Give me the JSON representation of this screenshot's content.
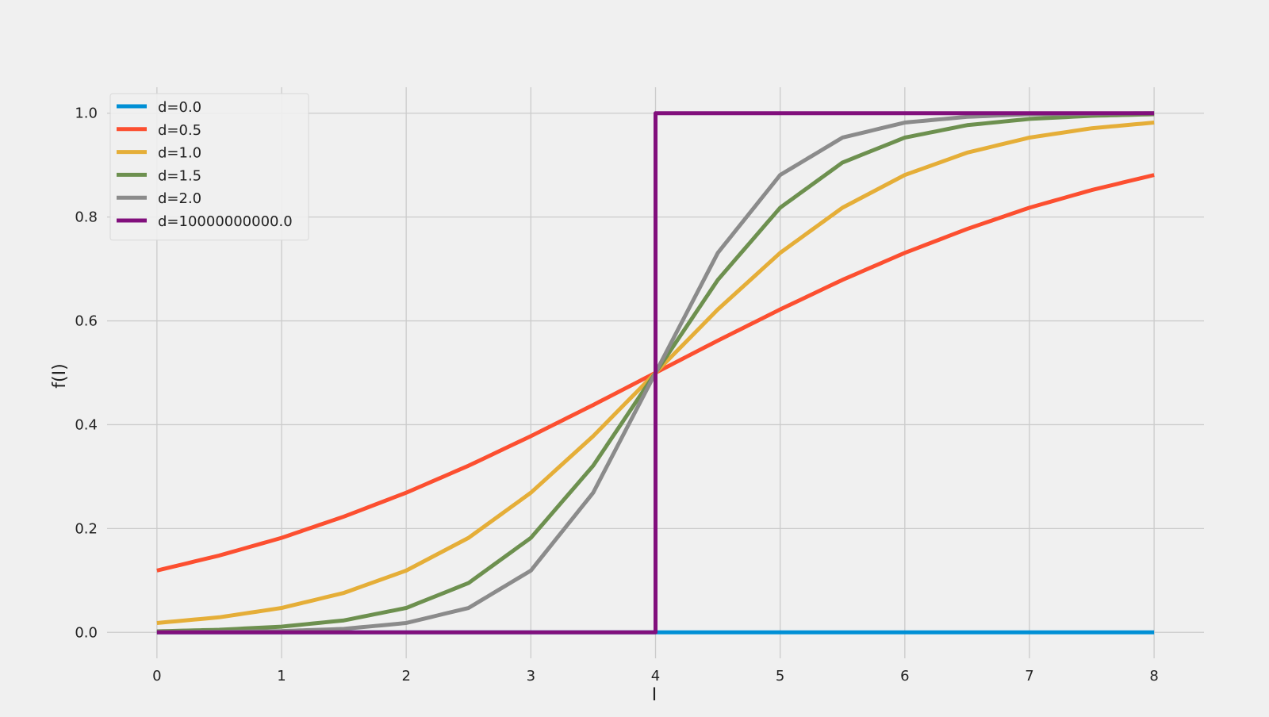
{
  "chart_data": {
    "type": "line",
    "title": "",
    "xlabel": "I",
    "ylabel": "f(I)",
    "xlim": [
      -0.4,
      8.4
    ],
    "ylim": [
      -0.05,
      1.05
    ],
    "xticks": [
      0,
      1,
      2,
      3,
      4,
      5,
      6,
      7,
      8
    ],
    "xtick_labels": [
      "0",
      "1",
      "2",
      "3",
      "4",
      "5",
      "6",
      "7",
      "8"
    ],
    "yticks": [
      0.0,
      0.2,
      0.4,
      0.6,
      0.8,
      1.0
    ],
    "ytick_labels": [
      "0.0",
      "0.2",
      "0.4",
      "0.6",
      "0.8",
      "1.0"
    ],
    "grid": true,
    "legend_position": "top-left",
    "background": "#f0f0f0",
    "grid_color": "#cbcbcb",
    "series": [
      {
        "name": "d=0.0",
        "color": "#008fd5",
        "x": [
          0,
          4,
          4,
          8
        ],
        "y": [
          0.0,
          0.0,
          0.0,
          0.0
        ]
      },
      {
        "name": "d=0.5",
        "color": "#fc4f30",
        "x": [
          0,
          0.5,
          1,
          1.5,
          2,
          2.5,
          3,
          3.5,
          4,
          4.5,
          5,
          5.5,
          6,
          6.5,
          7,
          7.5,
          8
        ],
        "y": [
          0.119,
          0.148,
          0.182,
          0.223,
          0.269,
          0.321,
          0.378,
          0.438,
          0.5,
          0.562,
          0.622,
          0.679,
          0.731,
          0.777,
          0.818,
          0.852,
          0.881
        ]
      },
      {
        "name": "d=1.0",
        "color": "#e5ae38",
        "x": [
          0,
          0.5,
          1,
          1.5,
          2,
          2.5,
          3,
          3.5,
          4,
          4.5,
          5,
          5.5,
          6,
          6.5,
          7,
          7.5,
          8
        ],
        "y": [
          0.018,
          0.029,
          0.047,
          0.076,
          0.119,
          0.182,
          0.269,
          0.378,
          0.5,
          0.622,
          0.731,
          0.818,
          0.881,
          0.924,
          0.953,
          0.971,
          0.982
        ]
      },
      {
        "name": "d=1.5",
        "color": "#6d904f",
        "x": [
          0,
          0.5,
          1,
          1.5,
          2,
          2.5,
          3,
          3.5,
          4,
          4.5,
          5,
          5.5,
          6,
          6.5,
          7,
          7.5,
          8
        ],
        "y": [
          0.002,
          0.005,
          0.011,
          0.023,
          0.047,
          0.095,
          0.182,
          0.321,
          0.5,
          0.679,
          0.818,
          0.905,
          0.953,
          0.977,
          0.989,
          0.995,
          0.998
        ]
      },
      {
        "name": "d=2.0",
        "color": "#8b8b8b",
        "x": [
          0,
          0.5,
          1,
          1.5,
          2,
          2.5,
          3,
          3.5,
          4,
          4.5,
          5,
          5.5,
          6,
          6.5,
          7,
          7.5,
          8
        ],
        "y": [
          0.0003,
          0.0009,
          0.0025,
          0.0067,
          0.018,
          0.047,
          0.119,
          0.269,
          0.5,
          0.731,
          0.881,
          0.953,
          0.982,
          0.993,
          0.998,
          0.999,
          1.0
        ]
      },
      {
        "name": "d=10000000000.0",
        "color": "#810f7c",
        "x": [
          0,
          4,
          4,
          8
        ],
        "y": [
          0.0,
          0.0,
          1.0,
          1.0
        ]
      }
    ]
  }
}
